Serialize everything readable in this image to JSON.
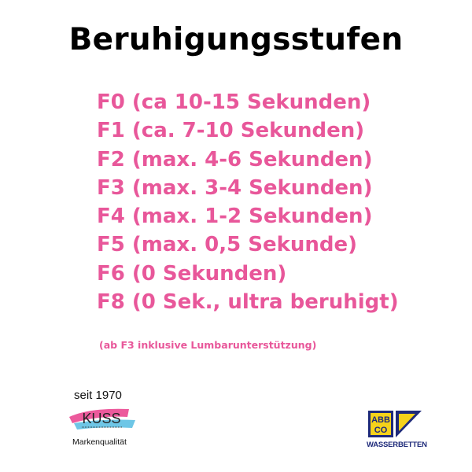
{
  "colors": {
    "accent": "#e8579a",
    "title": "#000000",
    "logo_blue": "#1e2a7a",
    "logo_yellow": "#f5d21a"
  },
  "title": "Beruhigungsstufen",
  "levels": [
    "F0 (ca 10-15 Sekunden)",
    "F1 (ca. 7-10 Sekunden)",
    "F2 (max. 4-6 Sekunden)",
    "F3 (max. 3-4 Sekunden)",
    "F4 (max. 1-2 Sekunden)",
    "F5 (max. 0,5 Sekunde)",
    "F6 (0 Sekunden)",
    "F8 (0 Sek., ultra beruhigt)"
  ],
  "note": "(ab F3 inklusive Lumbarunterstützung)",
  "kuss_logo": {
    "since": "seit 1970",
    "brand": "KUSS",
    "tagline": "Markenqualität"
  },
  "abbco_logo": {
    "brand_top": "ABB",
    "brand_bottom": "CO",
    "tagline": "WASSERBETTEN"
  }
}
